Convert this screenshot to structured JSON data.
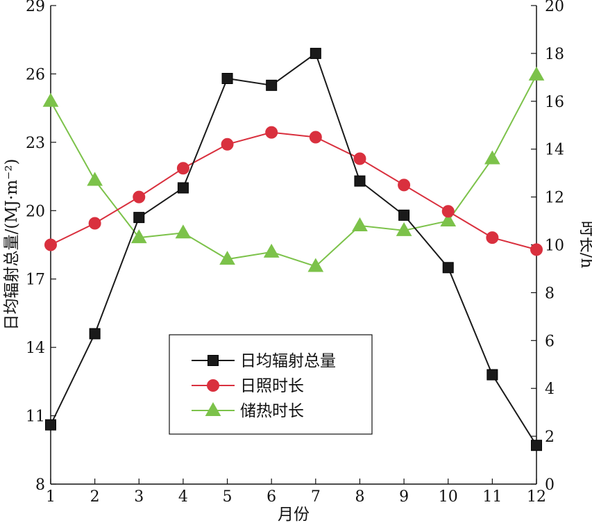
{
  "chart_data": {
    "type": "line",
    "x": [
      1,
      2,
      3,
      4,
      5,
      6,
      7,
      8,
      9,
      10,
      11,
      12
    ],
    "xlabel": "月份",
    "ylabel_left": "日均辐射总量/(MJ·m⁻²)",
    "ylabel_right": "时长/h",
    "ylim_left": [
      8,
      29
    ],
    "ylim_right": [
      0,
      20
    ],
    "xlim": [
      1,
      12
    ],
    "yticks_left": [
      8,
      11,
      14,
      17,
      20,
      23,
      26,
      29
    ],
    "yticks_right": [
      0,
      2,
      4,
      6,
      8,
      10,
      12,
      14,
      16,
      18,
      20
    ],
    "xticks": [
      1,
      2,
      3,
      4,
      5,
      6,
      7,
      8,
      9,
      10,
      11,
      12
    ],
    "grid": false,
    "legend_position": "lower-center",
    "series": [
      {
        "name": "日均辐射总量",
        "axis": "left",
        "marker": "square",
        "color": "#1a1a1a",
        "values": [
          10.6,
          14.6,
          19.7,
          21.0,
          25.8,
          25.5,
          26.9,
          21.3,
          19.8,
          17.5,
          12.8,
          9.7
        ]
      },
      {
        "name": "日照时长",
        "axis": "right",
        "marker": "circle",
        "color": "#d9303e",
        "values": [
          10.0,
          10.9,
          12.0,
          13.2,
          14.2,
          14.7,
          14.5,
          13.6,
          12.5,
          11.4,
          10.3,
          9.8
        ]
      },
      {
        "name": "储热时长",
        "axis": "right",
        "marker": "triangle",
        "color": "#7cc24a",
        "values": [
          16.0,
          12.7,
          10.3,
          10.5,
          9.4,
          9.7,
          9.1,
          10.8,
          10.6,
          11.0,
          13.6,
          17.1
        ]
      }
    ]
  }
}
